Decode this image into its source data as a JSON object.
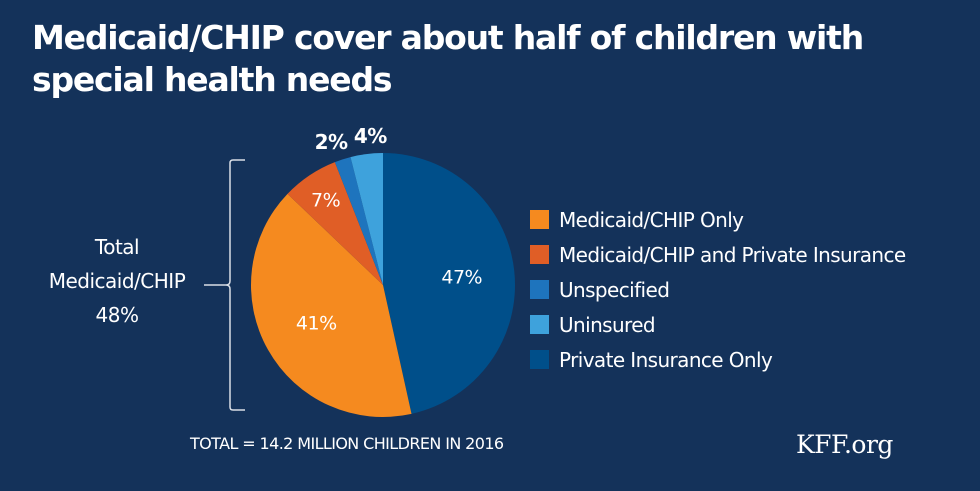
{
  "title": "Medicaid/CHIP cover about half of children with special health needs",
  "bracket": {
    "line1": "Total",
    "line2": "Medicaid/CHIP",
    "line3": "48%"
  },
  "footnote": "TOTAL = 14.2 MILLION CHILDREN IN 2016",
  "logo": "KFF.org",
  "chart_data": {
    "type": "pie",
    "title": "Medicaid/CHIP cover about half of children with special health needs",
    "start": "top",
    "direction": "clockwise",
    "legend_position": "right",
    "slices": [
      {
        "name": "Private Insurance Only",
        "value": 47,
        "label": "47%",
        "color": "#004f8a"
      },
      {
        "name": "Medicaid/CHIP Only",
        "value": 41,
        "label": "41%",
        "color": "#f58a1f"
      },
      {
        "name": "Medicaid/CHIP and Private Insurance",
        "value": 7,
        "label": "7%",
        "color": "#e05e26"
      },
      {
        "name": "Unspecified",
        "value": 2,
        "label": "2%",
        "color": "#1e74bd"
      },
      {
        "name": "Uninsured",
        "value": 4,
        "label": "4%",
        "color": "#3ea2dc"
      }
    ],
    "legend": [
      {
        "label": "Medicaid/CHIP Only",
        "color": "#f58a1f"
      },
      {
        "label": "Medicaid/CHIP and Private Insurance",
        "color": "#e05e26"
      },
      {
        "label": "Unspecified",
        "color": "#1e74bd"
      },
      {
        "label": "Uninsured",
        "color": "#3ea2dc"
      },
      {
        "label": "Private Insurance Only",
        "color": "#004f8a"
      }
    ],
    "annotation": "Total Medicaid/CHIP 48%",
    "total_note": "TOTAL = 14.2 MILLION CHILDREN IN 2016"
  }
}
